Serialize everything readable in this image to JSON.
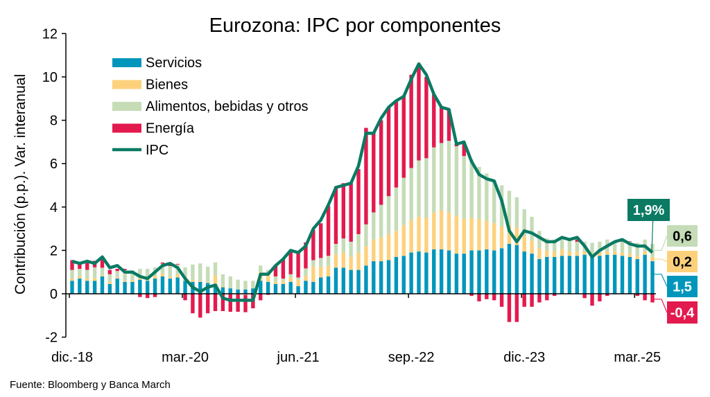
{
  "chart_data": {
    "type": "bar",
    "stacked": true,
    "title": "Eurozona: IPC por componentes",
    "ylabel": "Contribución (p.p.). Var. interanual",
    "xlabel": "",
    "ylim": [
      -2,
      12
    ],
    "yticks": [
      -2,
      0,
      2,
      4,
      6,
      8,
      10,
      12
    ],
    "x_start": "dic.-18",
    "x_end": "may.-25",
    "xtick_labels": [
      "dic.-18",
      "mar.-20",
      "jun.-21",
      "sep.-22",
      "dic.-23",
      "mar.-25"
    ],
    "xtick_every_months": 15,
    "legend_position": "top-left",
    "grid": false,
    "series": [
      {
        "name": "Servicios",
        "color": "#0096bb",
        "kind": "bar",
        "values": [
          0.6,
          0.7,
          0.6,
          0.6,
          0.8,
          0.45,
          0.7,
          0.55,
          0.55,
          0.65,
          0.6,
          0.7,
          0.8,
          0.7,
          0.75,
          0.6,
          0.55,
          0.55,
          0.5,
          0.45,
          0.3,
          0.25,
          0.2,
          0.2,
          0.25,
          0.6,
          0.55,
          0.45,
          0.45,
          0.55,
          0.35,
          0.6,
          0.55,
          0.75,
          0.8,
          1.2,
          1.2,
          1.1,
          1.1,
          1.3,
          1.5,
          1.5,
          1.55,
          1.7,
          1.75,
          1.9,
          1.95,
          1.9,
          2.05,
          2.05,
          2.0,
          1.85,
          1.85,
          2.0,
          2.0,
          2.05,
          2.0,
          2.1,
          2.3,
          2.25,
          1.95,
          1.85,
          1.6,
          1.7,
          1.7,
          1.75,
          1.75,
          1.75,
          1.8,
          1.75,
          1.75,
          1.8,
          1.8,
          1.75,
          1.7,
          1.6,
          1.8,
          1.5
        ]
      },
      {
        "name": "Bienes",
        "color": "#fdd17c",
        "kind": "bar",
        "values": [
          0.1,
          0.1,
          0.1,
          0.12,
          0.05,
          0.1,
          0.05,
          0.05,
          0.08,
          0.1,
          0.1,
          0.12,
          0.14,
          0.08,
          0.15,
          0.12,
          0.1,
          0.05,
          0.05,
          0.4,
          0.05,
          -0.03,
          -0.03,
          -0.05,
          -0.02,
          0.4,
          0.3,
          0.1,
          0.15,
          0.2,
          0.3,
          0.22,
          0.7,
          0.5,
          0.5,
          0.6,
          0.7,
          0.6,
          0.8,
          0.9,
          1.0,
          1.1,
          1.2,
          1.2,
          1.4,
          1.5,
          1.6,
          1.6,
          1.7,
          1.8,
          1.75,
          1.75,
          1.6,
          1.5,
          1.45,
          1.3,
          1.25,
          1.0,
          0.9,
          0.8,
          0.7,
          0.6,
          0.5,
          0.3,
          0.25,
          0.3,
          0.2,
          0.2,
          0.15,
          0.1,
          0.15,
          0.15,
          0.15,
          0.15,
          0.15,
          0.15,
          0.15,
          0.2
        ]
      },
      {
        "name": "Alimentos, bebidas y otros",
        "color": "#c5dcb7",
        "kind": "bar",
        "values": [
          0.4,
          0.35,
          0.4,
          0.5,
          0.35,
          0.35,
          0.3,
          0.5,
          0.45,
          0.4,
          0.45,
          0.4,
          0.45,
          0.5,
          0.45,
          0.5,
          0.7,
          0.8,
          0.7,
          0.6,
          0.55,
          0.55,
          0.45,
          0.4,
          0.35,
          0.3,
          0.25,
          0.25,
          0.1,
          0.15,
          0.1,
          0.35,
          0.3,
          0.4,
          0.45,
          0.5,
          0.65,
          0.7,
          0.85,
          1.0,
          1.25,
          1.5,
          1.75,
          2.0,
          2.2,
          2.4,
          2.6,
          2.75,
          3.0,
          3.1,
          3.3,
          3.2,
          2.9,
          2.7,
          2.4,
          2.2,
          2.0,
          1.9,
          1.55,
          1.4,
          1.25,
          1.1,
          0.8,
          0.55,
          0.55,
          0.5,
          0.55,
          0.45,
          0.45,
          0.5,
          0.5,
          0.55,
          0.5,
          0.5,
          0.55,
          0.6,
          0.55,
          0.6
        ]
      },
      {
        "name": "Energía",
        "color": "#e31a4e",
        "kind": "bar",
        "values": [
          0.45,
          0.25,
          0.35,
          0.3,
          0.5,
          0.2,
          0.1,
          0.05,
          -0.03,
          -0.15,
          -0.2,
          -0.15,
          0.05,
          0.15,
          0.03,
          -0.3,
          -0.9,
          -1.1,
          -0.9,
          -0.8,
          -0.8,
          -0.8,
          -0.8,
          -0.8,
          -0.65,
          -0.3,
          -0.05,
          0.5,
          0.9,
          1.1,
          1.15,
          1.2,
          1.4,
          1.6,
          2.3,
          2.65,
          2.55,
          2.7,
          3.0,
          4.45,
          3.7,
          3.9,
          4.1,
          4.0,
          3.8,
          4.3,
          4.45,
          3.75,
          2.45,
          1.7,
          1.45,
          0.1,
          0.6,
          -0.1,
          -0.35,
          -0.25,
          -0.3,
          -0.6,
          -1.3,
          -1.3,
          -0.6,
          -0.6,
          -0.4,
          -0.3,
          -0.1,
          0.0,
          0.02,
          0.1,
          -0.2,
          -0.55,
          -0.35,
          -0.1,
          0.0,
          0.02,
          0.02,
          -0.1,
          -0.3,
          -0.4
        ]
      },
      {
        "name": "IPC",
        "color": "#0a7a63",
        "kind": "line",
        "values": [
          1.5,
          1.4,
          1.5,
          1.4,
          1.7,
          1.2,
          1.3,
          1.0,
          1.0,
          0.8,
          0.7,
          1.0,
          1.3,
          1.4,
          1.2,
          0.7,
          0.3,
          0.1,
          0.3,
          0.4,
          -0.2,
          -0.3,
          -0.3,
          -0.3,
          -0.3,
          0.9,
          0.9,
          1.3,
          1.6,
          2.0,
          1.9,
          2.2,
          3.0,
          3.4,
          4.1,
          4.9,
          5.0,
          5.1,
          5.9,
          7.4,
          7.4,
          8.1,
          8.6,
          8.9,
          9.1,
          9.9,
          10.6,
          10.1,
          9.2,
          8.6,
          8.5,
          6.9,
          7.0,
          6.1,
          5.5,
          5.3,
          5.2,
          4.3,
          2.9,
          2.4,
          2.9,
          2.8,
          2.6,
          2.4,
          2.4,
          2.6,
          2.5,
          2.6,
          2.2,
          1.7,
          2.0,
          2.2,
          2.4,
          2.5,
          2.3,
          2.2,
          2.2,
          1.9
        ]
      }
    ],
    "annotations": [
      {
        "label": "1,9%",
        "series": "IPC",
        "color": "#0a7a63",
        "text_color": "#ffffff"
      },
      {
        "label": "0,6",
        "series": "Alimentos, bebidas y otros",
        "color": "#c5dcb7",
        "text_color": "#000000"
      },
      {
        "label": "0,2",
        "series": "Bienes",
        "color": "#fdd17c",
        "text_color": "#000000"
      },
      {
        "label": "1,5",
        "series": "Servicios",
        "color": "#0096bb",
        "text_color": "#ffffff"
      },
      {
        "label": "-0,4",
        "series": "Energía",
        "color": "#e31a4e",
        "text_color": "#ffffff"
      }
    ]
  },
  "source": "Fuente: Bloomberg y Banca March"
}
